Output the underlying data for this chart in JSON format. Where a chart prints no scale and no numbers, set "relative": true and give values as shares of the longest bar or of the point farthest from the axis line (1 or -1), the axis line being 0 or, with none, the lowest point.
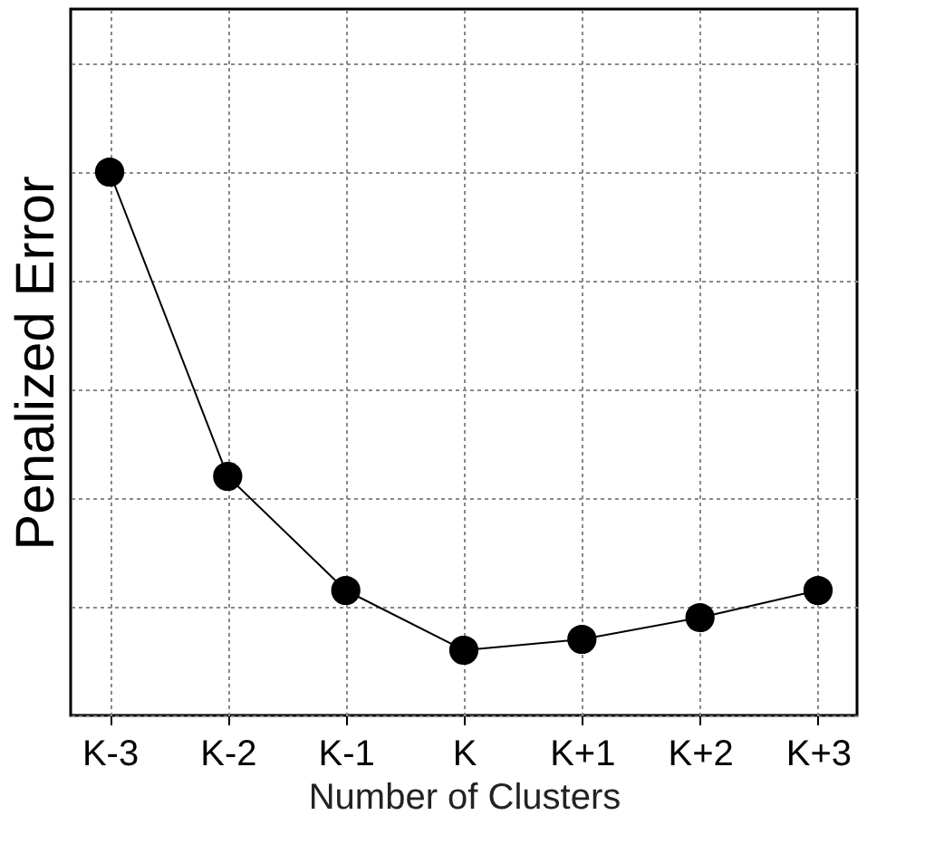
{
  "chart_data": {
    "type": "line",
    "xlabel": "Number of Clusters",
    "ylabel": "Penalized Error",
    "categories": [
      "K-3",
      "K-2",
      "K-1",
      "K",
      "K+1",
      "K+2",
      "K+3"
    ],
    "series": [
      {
        "color": "#000000",
        "values": [
          1,
          0.44,
          0.23,
          0.12,
          0.14,
          0.18,
          0.23
        ]
      }
    ],
    "relative": true,
    "marker": "circle",
    "line_style": "solid",
    "grid": true
  }
}
